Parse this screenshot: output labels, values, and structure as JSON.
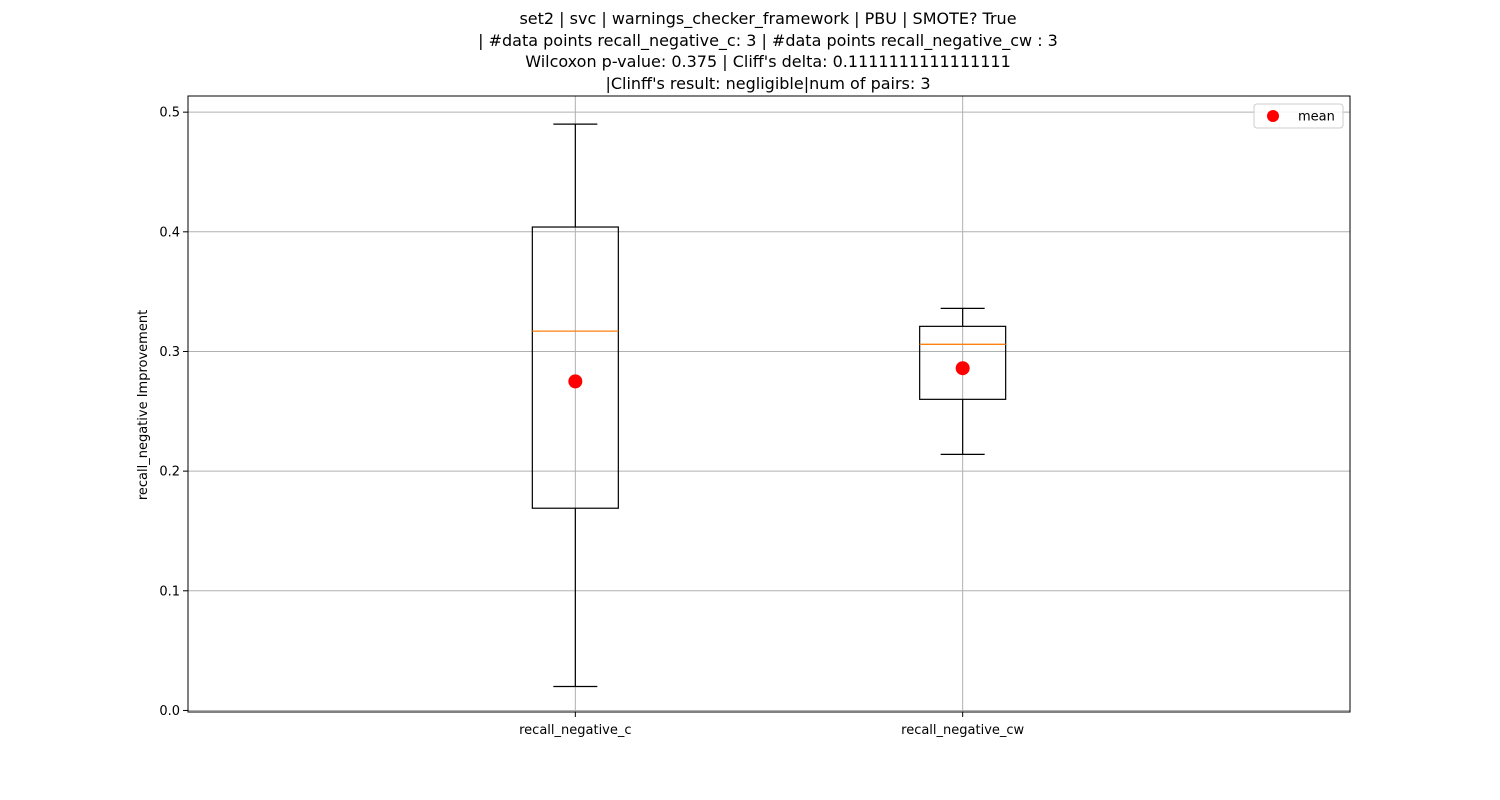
{
  "chart_data": {
    "type": "box",
    "title_lines": [
      "set2 | svc | warnings_checker_framework | PBU | SMOTE? True",
      "| #data points recall_negative_c: 3 | #data points recall_negative_cw : 3",
      "Wilcoxon p-value: 0.375 | Cliff's delta: 0.1111111111111111",
      "|Clinff's result: negligible|num of pairs: 3"
    ],
    "xlabel": "",
    "ylabel": "recall_negative Improvement",
    "ylim": [
      -0.0013,
      0.5135
    ],
    "yticks": [
      0.0,
      0.1,
      0.2,
      0.3,
      0.4,
      0.5
    ],
    "ytick_labels": [
      "0.0",
      "0.1",
      "0.2",
      "0.3",
      "0.4",
      "0.5"
    ],
    "categories": [
      "recall_negative_c",
      "recall_negative_cw"
    ],
    "boxes": [
      {
        "name": "recall_negative_c",
        "whisker_low": 0.02,
        "q1": 0.169,
        "median": 0.317,
        "q3": 0.404,
        "whisker_high": 0.49,
        "mean": 0.275
      },
      {
        "name": "recall_negative_cw",
        "whisker_low": 0.214,
        "q1": 0.26,
        "median": 0.306,
        "q3": 0.321,
        "whisker_high": 0.336,
        "mean": 0.286
      }
    ],
    "legend": {
      "position": "top-right",
      "entries": [
        {
          "label": "mean",
          "color": "#ff0000",
          "marker": "circle"
        }
      ]
    },
    "grid": true,
    "colors": {
      "box": "#000000",
      "median": "#ff7f0e",
      "mean": "#ff0000",
      "grid": "#b0b0b0"
    }
  }
}
